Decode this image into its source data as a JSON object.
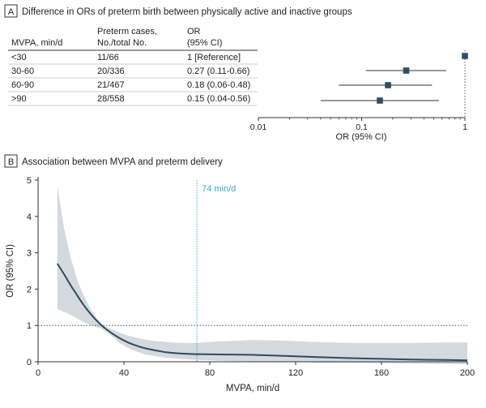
{
  "panel_a": {
    "letter": "A",
    "title": "Difference in ORs of preterm birth between physically active and inactive groups",
    "columns": {
      "mvpa": "MVPA, min/d",
      "cases_line1": "Preterm cases,",
      "cases_line2": "No./total No.",
      "or_line1": "OR",
      "or_line2": "(95% CI)"
    },
    "rows": [
      {
        "mvpa": "<30",
        "cases": "11/66",
        "or_text": "1 [Reference]"
      },
      {
        "mvpa": "30-60",
        "cases": "20/336",
        "or_text": "0.27 (0.11-0.66)"
      },
      {
        "mvpa": "60-90",
        "cases": "21/467",
        "or_text": "0.18 (0.06-0.48)"
      },
      {
        "mvpa": ">90",
        "cases": "28/558",
        "or_text": "0.15 (0.04-0.56)"
      }
    ],
    "axis_label": "OR (95% CI)"
  },
  "panel_b": {
    "letter": "B",
    "title": "Association between MVPA and preterm delivery",
    "annotation": "74 min/d"
  },
  "colors": {
    "marker": "#2f4f5f",
    "curve": "#2f4a5c",
    "band": "#d3d9de",
    "vline": "#3aa8c8",
    "axis": "#333333"
  },
  "chart_data": [
    {
      "type": "scatter",
      "subtype": "forest",
      "categories": [
        "<30",
        "30-60",
        "60-90",
        ">90"
      ],
      "series": [
        {
          "values": [
            1,
            0.27,
            0.18,
            0.15
          ],
          "ci_low": [
            1,
            0.11,
            0.06,
            0.04
          ],
          "ci_high": [
            1,
            0.66,
            0.48,
            0.56
          ]
        }
      ],
      "xlabel": "OR (95% CI)",
      "xscale": "log",
      "xlim": [
        0.01,
        1
      ],
      "xticks": [
        0.01,
        0.1,
        1
      ],
      "xtick_labels": [
        "0.01",
        "0.1",
        "1"
      ],
      "reference_line": 1
    },
    {
      "type": "line",
      "title": "Association between MVPA and preterm delivery",
      "xlabel": "MVPA, min/d",
      "ylabel": "OR (95% CI)",
      "xlim": [
        0,
        200
      ],
      "ylim": [
        0,
        5
      ],
      "xticks": [
        0,
        40,
        80,
        120,
        160,
        200
      ],
      "yticks": [
        0,
        1,
        2,
        3,
        4,
        5
      ],
      "reference_hline": 1,
      "vline": 74,
      "annotation": "74 min/d",
      "series": [
        {
          "x": [
            9,
            12,
            15,
            18,
            21,
            24,
            27,
            30,
            34,
            38,
            42,
            46,
            50,
            55,
            60,
            66,
            74,
            85,
            100,
            115,
            130,
            145,
            160,
            175,
            190,
            200
          ],
          "y": [
            2.7,
            2.42,
            2.12,
            1.85,
            1.58,
            1.35,
            1.15,
            0.98,
            0.8,
            0.65,
            0.53,
            0.44,
            0.37,
            0.31,
            0.26,
            0.23,
            0.21,
            0.2,
            0.19,
            0.16,
            0.13,
            0.1,
            0.08,
            0.06,
            0.05,
            0.04
          ],
          "ci_high": [
            4.85,
            3.7,
            2.9,
            2.3,
            1.85,
            1.5,
            1.22,
            1.02,
            0.9,
            0.8,
            0.72,
            0.66,
            0.61,
            0.57,
            0.54,
            0.52,
            0.52,
            0.56,
            0.6,
            0.58,
            0.54,
            0.52,
            0.52,
            0.52,
            0.53,
            0.53
          ],
          "ci_low": [
            1.45,
            1.38,
            1.3,
            1.2,
            1.1,
            1.02,
            0.96,
            0.9,
            0.72,
            0.52,
            0.38,
            0.28,
            0.2,
            0.15,
            0.11,
            0.08,
            0.05,
            0.03,
            0.01,
            0.0,
            -0.02,
            -0.03,
            -0.04,
            -0.05,
            -0.06,
            -0.07
          ]
        }
      ]
    }
  ]
}
